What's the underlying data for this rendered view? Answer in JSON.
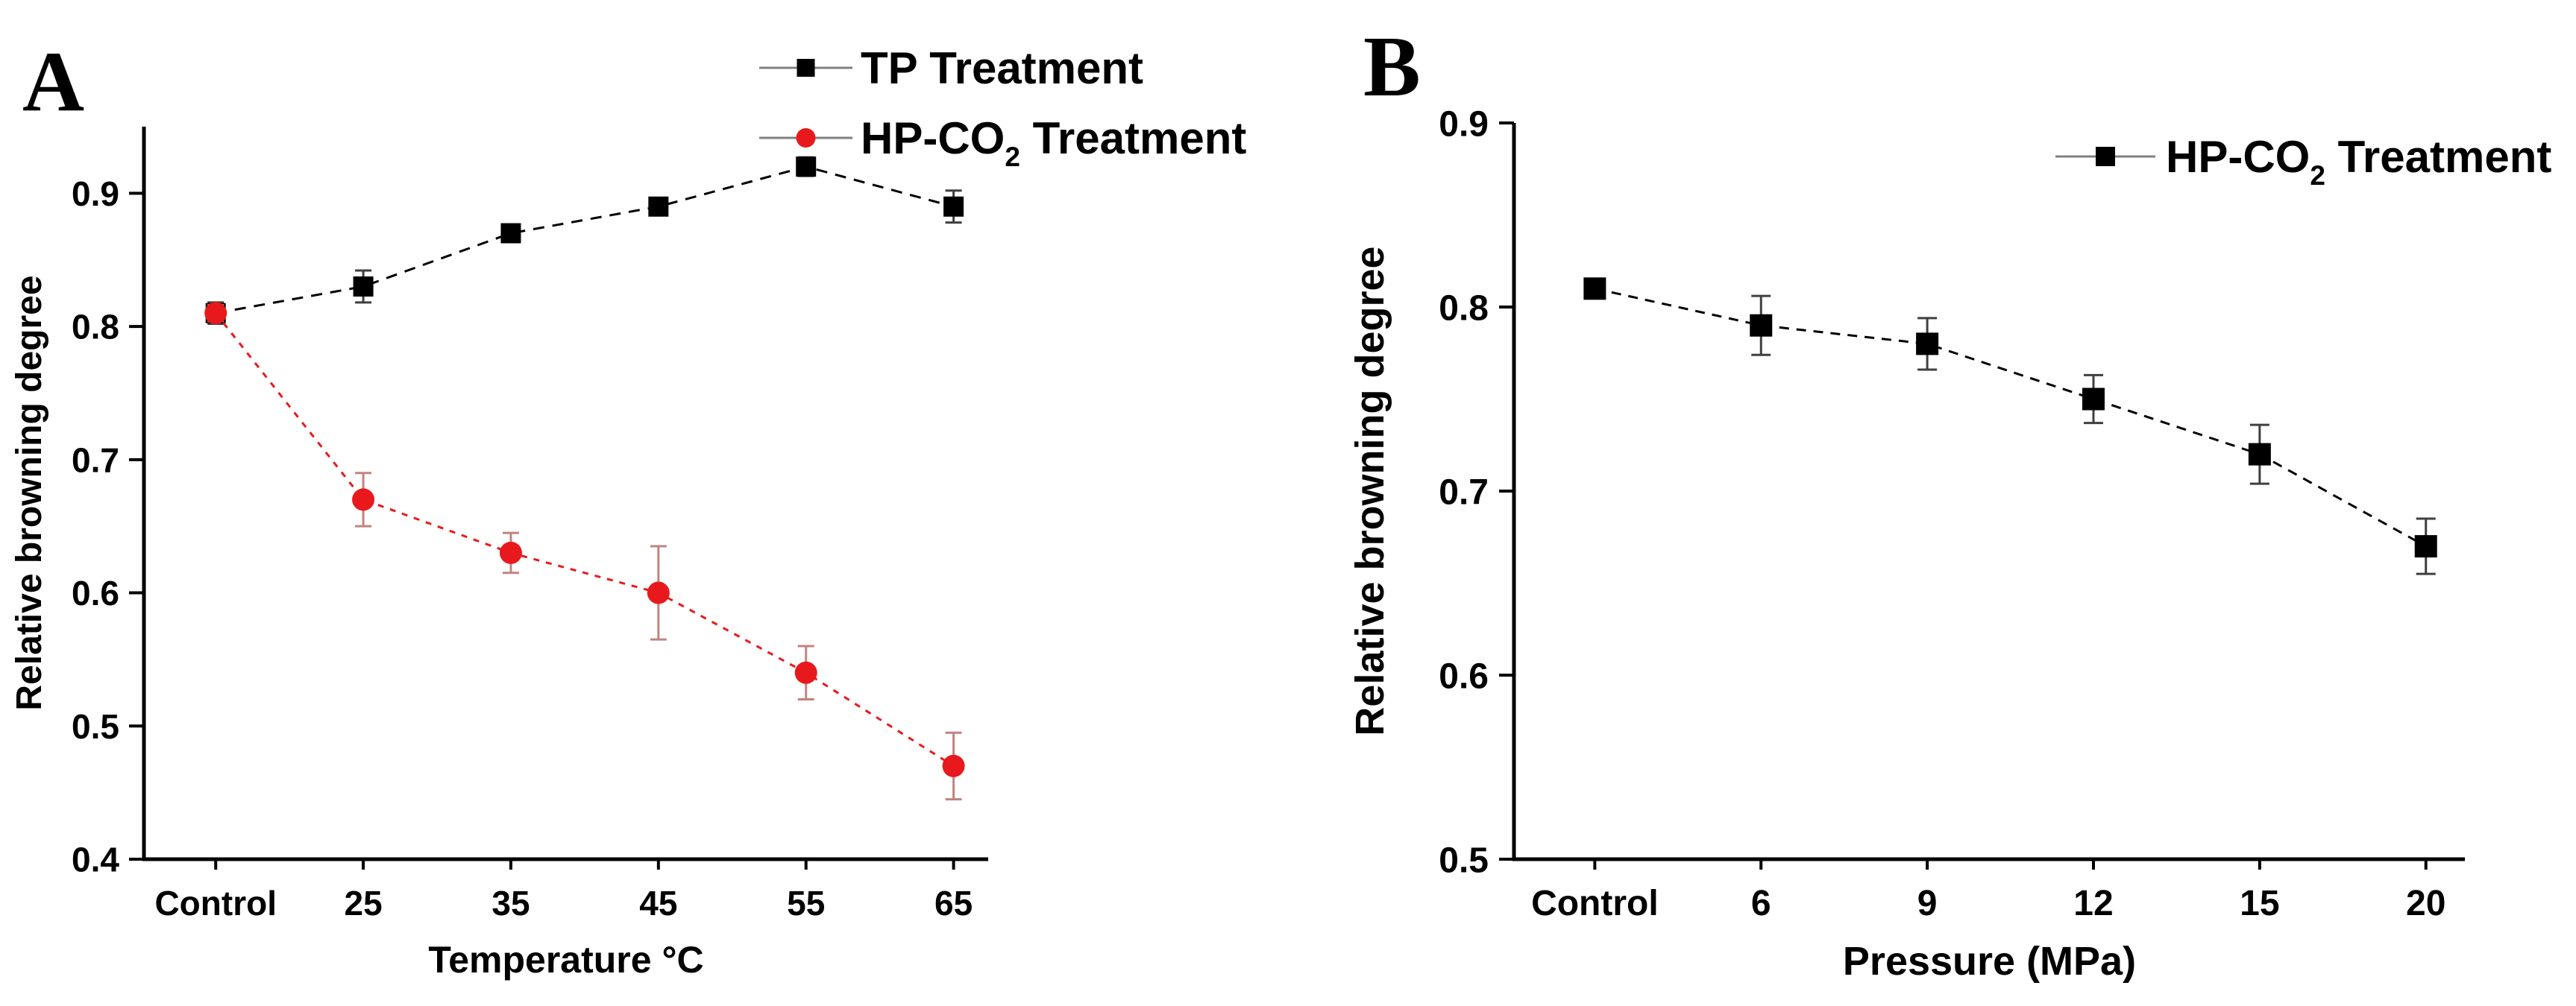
{
  "chart_data": [
    {
      "panel_label": "A",
      "type": "line",
      "title": "",
      "xlabel": "Temperature °C",
      "ylabel": "Relative browning degree",
      "categories": [
        "Control",
        "25",
        "35",
        "45",
        "55",
        "65"
      ],
      "ylim": [
        0.4,
        0.95
      ],
      "yticks": [
        "0.4",
        "0.5",
        "0.6",
        "0.7",
        "0.8",
        "0.9"
      ],
      "grid": false,
      "legend_position": "top-right-above-plot",
      "axis_color": "#000000",
      "legend_line_color": "#808080",
      "series": [
        {
          "name": "TP Treatment",
          "label_parts": {
            "pre": "TP Treatment",
            "sub": "",
            "post": ""
          },
          "marker": "square",
          "marker_size": 27,
          "color": "#000000",
          "error_color": "#3f3f3f",
          "line_dash": "15 11",
          "values": [
            0.81,
            0.83,
            0.87,
            0.89,
            0.92,
            0.89
          ],
          "errors": [
            0.008,
            0.012,
            0.006,
            0.006,
            0.007,
            0.012
          ]
        },
        {
          "name": "HP-CO2 Treatment",
          "label_parts": {
            "pre": "HP-CO",
            "sub": "2",
            "post": " Treatment"
          },
          "marker": "circle",
          "marker_size": 15,
          "color": "#e8191c",
          "error_color": "#c08480",
          "line_dash": "8 9",
          "values": [
            0.81,
            0.67,
            0.63,
            0.6,
            0.54,
            0.47
          ],
          "errors": [
            0.006,
            0.02,
            0.015,
            0.035,
            0.02,
            0.025
          ]
        }
      ]
    },
    {
      "panel_label": "B",
      "type": "line",
      "title": "",
      "xlabel": "Pressure (MPa)",
      "ylabel": "Relative browning degree",
      "categories": [
        "Control",
        "6",
        "9",
        "12",
        "15",
        "20"
      ],
      "ylim": [
        0.5,
        0.9
      ],
      "yticks": [
        "0.5",
        "0.6",
        "0.7",
        "0.8",
        "0.9"
      ],
      "grid": false,
      "legend_position": "top-right-inside-plot",
      "axis_color": "#000000",
      "legend_line_color": "#808080",
      "series": [
        {
          "name": "HP-CO2 Treatment",
          "label_parts": {
            "pre": "HP-CO",
            "sub": "2",
            "post": " Treatment"
          },
          "marker": "square",
          "marker_size": 30,
          "color": "#000000",
          "error_color": "#3f3f3f",
          "line_dash": "13 10",
          "values": [
            0.81,
            0.79,
            0.78,
            0.75,
            0.72,
            0.67
          ],
          "errors": [
            0.004,
            0.016,
            0.014,
            0.013,
            0.016,
            0.015
          ]
        }
      ]
    }
  ]
}
